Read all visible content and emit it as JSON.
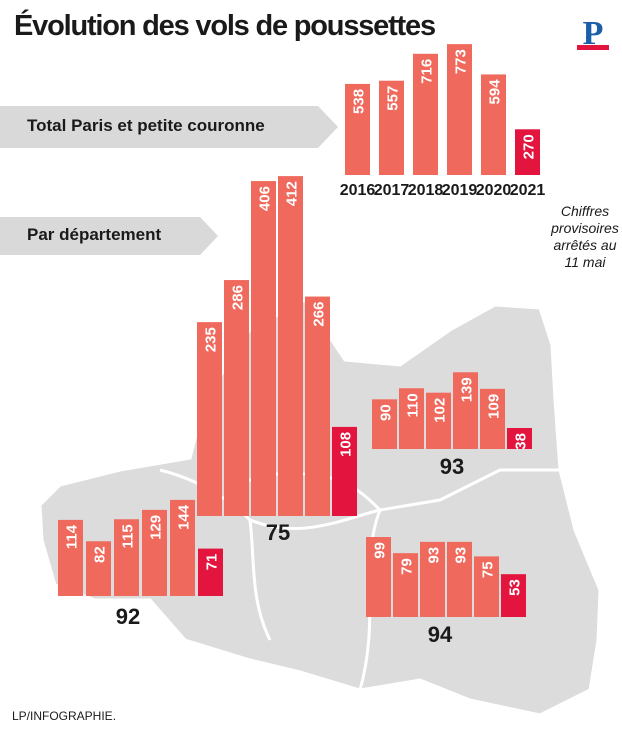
{
  "title": "Évolution des vols de poussettes",
  "logo_letter": "P",
  "arrow_total_label": "Total Paris et petite couronne",
  "arrow_dept_label": "Par département",
  "note": "Chiffres\nprovisoires\narrêtés au\n11 mai",
  "credit": "LP/INFOGRAPHIE.",
  "colors": {
    "bar": "#f0695d",
    "bar_highlight": "#e3143d",
    "map_fill": "#dcdcdc",
    "map_border": "#ffffff",
    "arrow_fill": "#d9d9d9"
  },
  "chart_data": [
    {
      "type": "bar",
      "name": "Total Paris et petite couronne",
      "categories": [
        "2016",
        "2017",
        "2018",
        "2019",
        "2020",
        "2021"
      ],
      "values": [
        538,
        557,
        716,
        773,
        594,
        270
      ],
      "highlight_last": true
    },
    {
      "type": "bar",
      "label": "75",
      "categories": [
        "2016",
        "2017",
        "2018",
        "2019",
        "2020",
        "2021"
      ],
      "values": [
        235,
        286,
        406,
        412,
        266,
        108
      ],
      "highlight_last": true
    },
    {
      "type": "bar",
      "label": "93",
      "categories": [
        "2016",
        "2017",
        "2018",
        "2019",
        "2020",
        "2021"
      ],
      "values": [
        90,
        110,
        102,
        139,
        109,
        38
      ],
      "highlight_last": true
    },
    {
      "type": "bar",
      "label": "92",
      "categories": [
        "2016",
        "2017",
        "2018",
        "2019",
        "2020",
        "2021"
      ],
      "values": [
        114,
        82,
        115,
        129,
        144,
        71
      ],
      "highlight_last": true
    },
    {
      "type": "bar",
      "label": "94",
      "categories": [
        "2016",
        "2017",
        "2018",
        "2019",
        "2020",
        "2021"
      ],
      "values": [
        99,
        79,
        93,
        93,
        75,
        53
      ],
      "highlight_last": true
    }
  ]
}
